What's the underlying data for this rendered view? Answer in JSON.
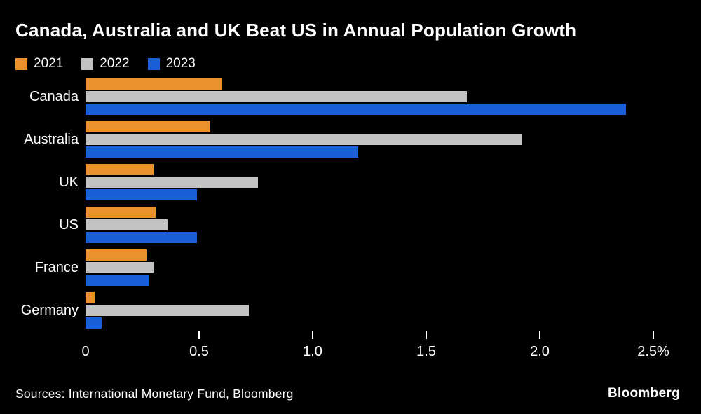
{
  "title": "Canada, Australia and UK Beat US in Annual Population Growth",
  "legend": [
    {
      "label": "2021",
      "color": "#E8912D"
    },
    {
      "label": "2022",
      "color": "#C2C2C2"
    },
    {
      "label": "2023",
      "color": "#1A5FD7"
    }
  ],
  "chart_data": {
    "type": "bar",
    "orientation": "horizontal",
    "title": "Canada, Australia and UK Beat US in Annual Population Growth",
    "categories": [
      "Canada",
      "Australia",
      "UK",
      "US",
      "France",
      "Germany"
    ],
    "series": [
      {
        "name": "2021",
        "color": "#E8912D",
        "values": [
          0.6,
          0.55,
          0.3,
          0.31,
          0.27,
          0.04
        ]
      },
      {
        "name": "2022",
        "color": "#C2C2C2",
        "values": [
          1.68,
          1.92,
          0.76,
          0.36,
          0.3,
          0.72
        ]
      },
      {
        "name": "2023",
        "color": "#1A5FD7",
        "values": [
          2.38,
          1.2,
          0.49,
          0.49,
          0.28,
          0.07
        ]
      }
    ],
    "xlabel": "",
    "ylabel": "",
    "xlim": [
      0,
      2.5
    ],
    "x_ticks": [
      0,
      0.5,
      1.0,
      1.5,
      2.0,
      2.5
    ],
    "x_tick_labels": [
      "0",
      "0.5",
      "1.0",
      "1.5",
      "2.0",
      "2.5%"
    ],
    "grid": false,
    "legend_position": "top",
    "unit": "% annual population growth"
  },
  "footer": {
    "source": "Sources: International Monetary Fund, Bloomberg",
    "brand": "Bloomberg"
  },
  "colors": {
    "background": "#000000",
    "text": "#FFFFFF",
    "accent_orange": "#E8912D",
    "accent_gray": "#C2C2C2",
    "accent_blue": "#1A5FD7"
  }
}
